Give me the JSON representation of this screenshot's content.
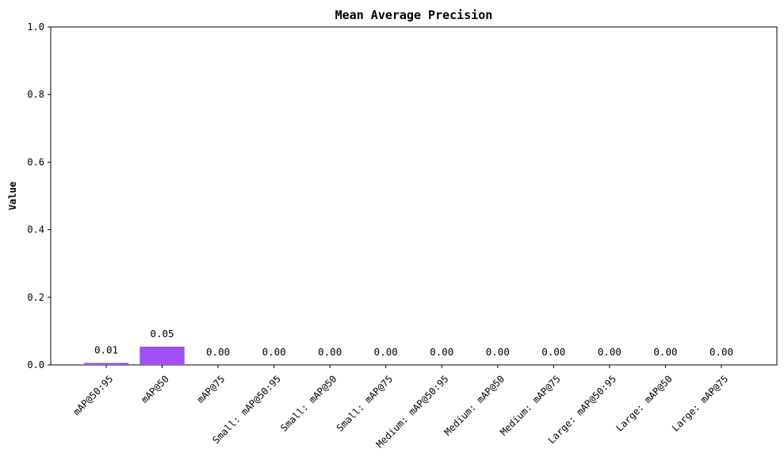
{
  "chart_data": {
    "type": "bar",
    "title": "Mean Average Precision",
    "xlabel": "",
    "ylabel": "Value",
    "ylim": [
      0,
      1.0
    ],
    "yticks": [
      "0.0",
      "0.2",
      "0.4",
      "0.6",
      "0.8",
      "1.0"
    ],
    "grid": false,
    "bar_color": "#a24ff5",
    "categories": [
      "mAP@50:95",
      "mAP@50",
      "mAP@75",
      "Small: mAP@50:95",
      "Small: mAP@50",
      "Small: mAP@75",
      "Medium: mAP@50:95",
      "Medium: mAP@50",
      "Medium: mAP@75",
      "Large: mAP@50:95",
      "Large: mAP@50",
      "Large: mAP@75"
    ],
    "values": [
      0.006,
      0.054,
      0.0,
      0.0,
      0.0,
      0.0,
      0.0,
      0.0,
      0.0,
      0.0,
      0.0,
      0.0
    ],
    "value_labels": [
      "0.01",
      "0.05",
      "0.00",
      "0.00",
      "0.00",
      "0.00",
      "0.00",
      "0.00",
      "0.00",
      "0.00",
      "0.00",
      "0.00"
    ]
  }
}
